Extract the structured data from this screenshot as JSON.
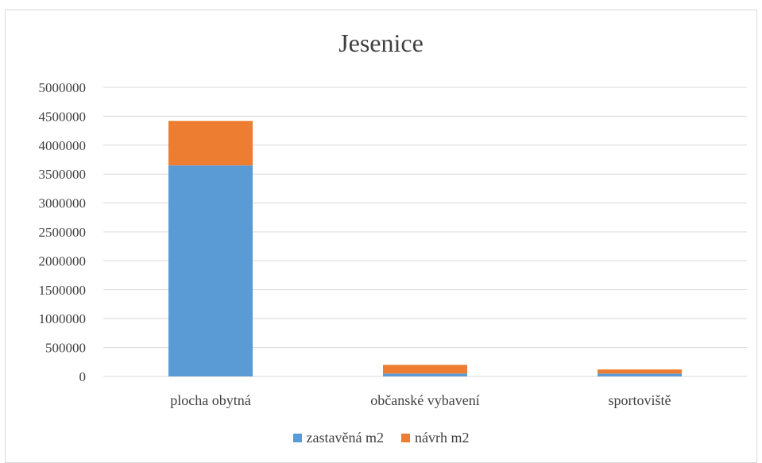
{
  "chart_data": {
    "type": "bar",
    "stacked": true,
    "title": "Jesenice",
    "xlabel": "",
    "ylabel": "",
    "categories": [
      "plocha obytná",
      "občanské vybavení",
      "sportoviště"
    ],
    "series": [
      {
        "name": "zastavěná m2",
        "color": "#5b9bd5",
        "values": [
          3650000,
          50000,
          50000
        ]
      },
      {
        "name": "návrh m2",
        "color": "#ed7d31",
        "values": [
          770000,
          150000,
          70000
        ]
      }
    ],
    "ylim": [
      0,
      5000000
    ],
    "yticks": [
      "0",
      "500000",
      "1000000",
      "1500000",
      "2000000",
      "2500000",
      "3000000",
      "3500000",
      "4000000",
      "4500000",
      "5000000"
    ],
    "grid": true,
    "legend_position": "bottom"
  }
}
